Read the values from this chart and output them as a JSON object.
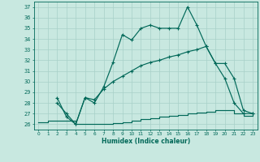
{
  "background_color": "#c8e8e0",
  "grid_color": "#a8d0c8",
  "line_color": "#006858",
  "xlabel": "Humidex (Indice chaleur)",
  "ylabel_values": [
    26,
    27,
    28,
    29,
    30,
    31,
    32,
    33,
    34,
    35,
    36,
    37
  ],
  "xlim": [
    -0.5,
    23.5
  ],
  "ylim": [
    25.5,
    37.5
  ],
  "x_ticks": [
    0,
    1,
    2,
    3,
    4,
    5,
    6,
    7,
    8,
    9,
    10,
    11,
    12,
    13,
    14,
    15,
    16,
    17,
    18,
    19,
    20,
    21,
    22,
    23
  ],
  "line1_x": [
    2,
    3,
    4,
    5,
    6,
    7,
    8,
    9,
    10,
    11,
    12,
    13,
    14,
    15,
    16,
    17,
    18,
    19,
    20,
    21,
    22,
    23
  ],
  "line1_y": [
    28.5,
    26.7,
    26.0,
    28.5,
    28.0,
    29.5,
    31.8,
    34.4,
    33.9,
    35.0,
    35.3,
    35.0,
    35.0,
    35.0,
    37.0,
    35.3,
    33.3,
    31.7,
    30.3,
    28.0,
    27.0,
    27.0
  ],
  "line2_x": [
    2,
    3,
    4,
    5,
    6,
    7,
    8,
    9,
    10,
    11,
    12,
    13,
    14,
    15,
    16,
    17,
    18,
    19,
    20,
    21,
    22,
    23
  ],
  "line2_y": [
    28.0,
    27.0,
    26.0,
    28.5,
    28.3,
    29.3,
    30.0,
    30.5,
    31.0,
    31.5,
    31.8,
    32.0,
    32.3,
    32.5,
    32.8,
    33.0,
    33.3,
    31.7,
    31.7,
    30.3,
    27.3,
    27.0
  ],
  "line3_x": [
    0,
    1,
    2,
    3,
    4,
    5,
    6,
    7,
    8,
    9,
    10,
    11,
    12,
    13,
    14,
    15,
    16,
    17,
    18,
    19,
    20,
    21,
    22,
    23
  ],
  "line3_y": [
    26.2,
    26.3,
    26.3,
    26.3,
    26.0,
    26.0,
    26.0,
    26.0,
    26.1,
    26.2,
    26.3,
    26.5,
    26.6,
    26.7,
    26.8,
    26.9,
    27.0,
    27.1,
    27.2,
    27.3,
    27.3,
    27.0,
    26.8,
    27.0
  ]
}
